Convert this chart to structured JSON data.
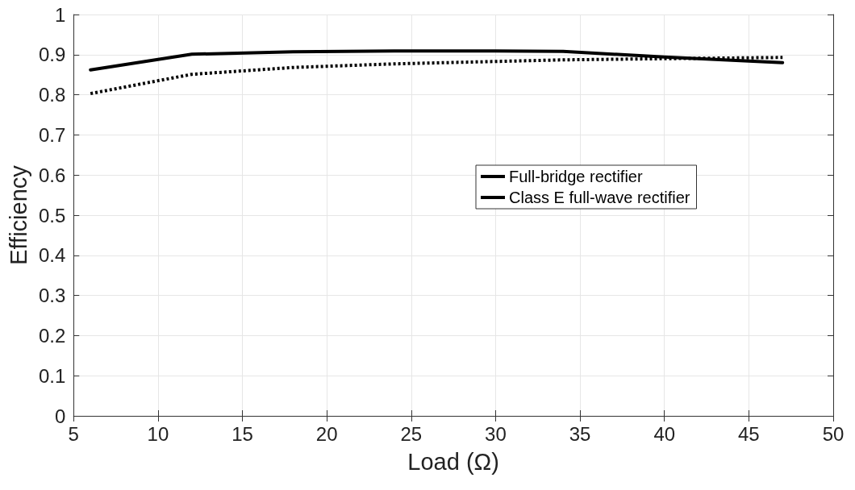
{
  "chart_data": {
    "type": "line",
    "xlabel": "Load (Ω)",
    "ylabel": "Efficiency",
    "x": [
      6,
      12,
      18,
      24,
      30,
      34,
      40,
      47
    ],
    "series": [
      {
        "name": "Full-bridge rectifier",
        "color": "#000000",
        "line_style": "dotted",
        "values": [
          0.803,
          0.851,
          0.868,
          0.877,
          0.883,
          0.887,
          0.89,
          0.893
        ]
      },
      {
        "name": "Class E full-wave rectifier",
        "color": "#000000",
        "line_style": "solid",
        "values": [
          0.862,
          0.901,
          0.907,
          0.909,
          0.909,
          0.908,
          0.894,
          0.88
        ]
      }
    ],
    "xlim": [
      5,
      50
    ],
    "xticks": [
      5,
      10,
      15,
      20,
      25,
      30,
      35,
      40,
      45,
      50
    ],
    "ylim": [
      0,
      1
    ],
    "yticks": [
      0,
      0.1,
      0.2,
      0.3,
      0.4,
      0.5,
      0.6,
      0.7,
      0.8,
      0.9,
      1
    ],
    "grid": true,
    "legend": "right",
    "marker": "none"
  }
}
